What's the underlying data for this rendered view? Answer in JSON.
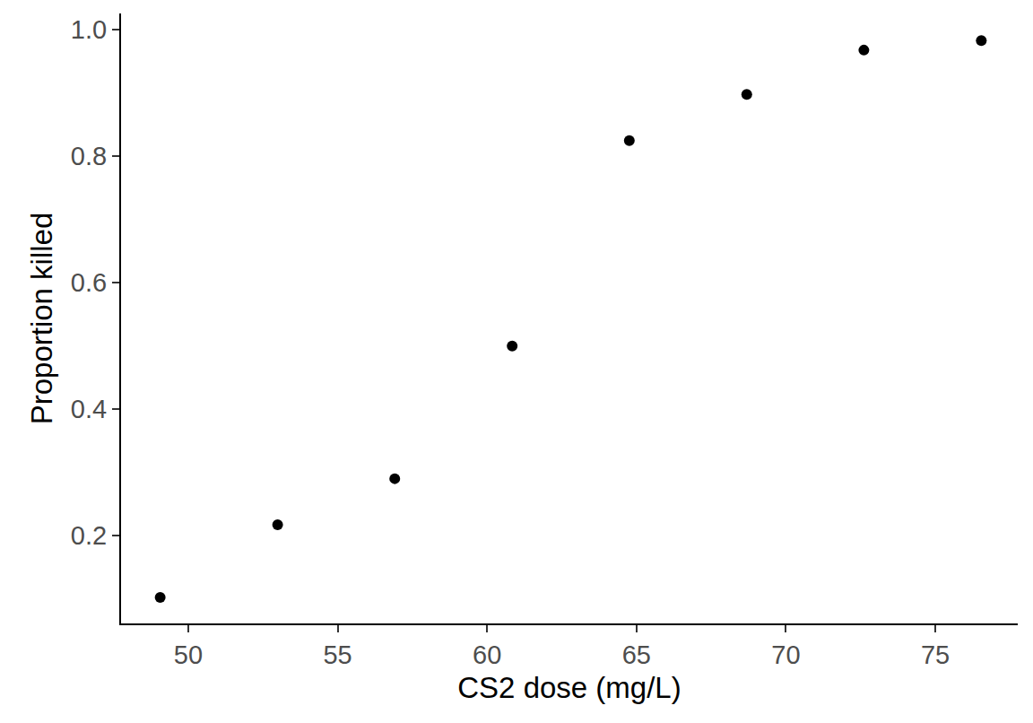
{
  "chart_data": {
    "type": "scatter",
    "x_label": "CS2 dose (mg/L)",
    "y_label": "Proportion killed",
    "x": [
      49.06,
      52.99,
      56.91,
      60.84,
      64.76,
      68.69,
      72.61,
      76.54
    ],
    "values": [
      0.102,
      0.217,
      0.29,
      0.5,
      0.825,
      0.898,
      0.968,
      0.983
    ],
    "color": "#000000",
    "marker": "circle",
    "xlim": [
      47.75,
      77.76
    ],
    "xticks": [
      50,
      55,
      60,
      65,
      70,
      75
    ],
    "ylim": [
      0.061,
      1.026
    ],
    "yticks": [
      0.2,
      0.4,
      0.6,
      0.8,
      {
        "value": 1,
        "label": "1.0"
      }
    ],
    "grid": false
  }
}
